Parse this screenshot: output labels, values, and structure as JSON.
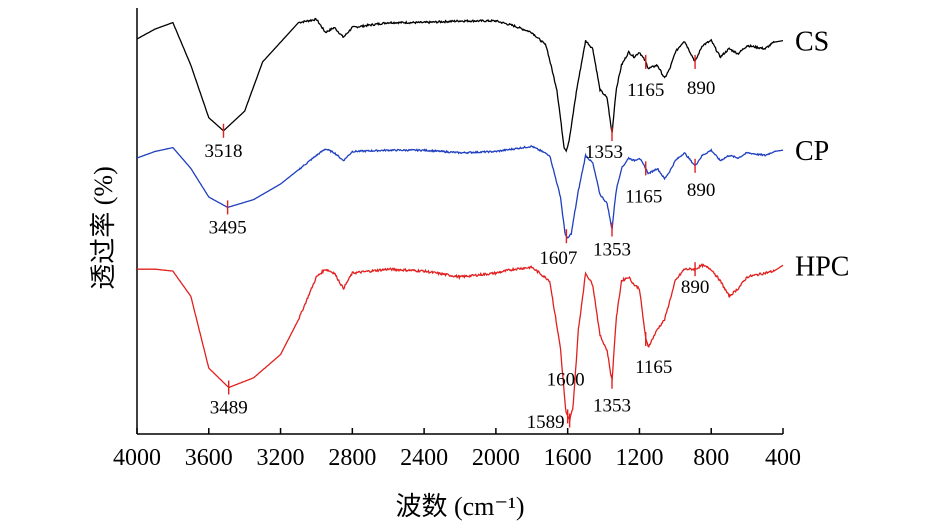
{
  "chart_data": {
    "type": "line",
    "xlabel": "波数 (cm⁻¹)",
    "ylabel": "透过率 (%)",
    "xlim": [
      4000,
      400
    ],
    "x_reversed": true,
    "x_ticks": [
      "4000",
      "3600",
      "3200",
      "2800",
      "2400",
      "2000",
      "1600",
      "1200",
      "800",
      "400"
    ],
    "x_tick_values": [
      4000,
      3600,
      3200,
      2800,
      2400,
      2000,
      1600,
      1200,
      800,
      400
    ],
    "y_ticks_shown": false,
    "grid": false,
    "legend": "labels at right end of each curve",
    "series": [
      {
        "name": "CS",
        "color": "#000000",
        "peaks": [
          {
            "x": 3518,
            "label": "3518"
          },
          {
            "x": 1353,
            "label": "1353"
          },
          {
            "x": 1165,
            "label": "1165"
          },
          {
            "x": 890,
            "label": "890"
          }
        ],
        "points": [
          [
            4000,
            0.86
          ],
          [
            3900,
            0.92
          ],
          [
            3800,
            0.96
          ],
          [
            3700,
            0.7
          ],
          [
            3600,
            0.38
          ],
          [
            3518,
            0.3
          ],
          [
            3400,
            0.42
          ],
          [
            3300,
            0.72
          ],
          [
            3100,
            0.96
          ],
          [
            3000,
            0.98
          ],
          [
            2950,
            0.9
          ],
          [
            2900,
            0.93
          ],
          [
            2850,
            0.87
          ],
          [
            2800,
            0.93
          ],
          [
            2600,
            0.96
          ],
          [
            2400,
            0.96
          ],
          [
            2200,
            0.97
          ],
          [
            2000,
            0.97
          ],
          [
            1900,
            0.94
          ],
          [
            1800,
            0.9
          ],
          [
            1720,
            0.82
          ],
          [
            1660,
            0.55
          ],
          [
            1620,
            0.2
          ],
          [
            1607,
            0.18
          ],
          [
            1590,
            0.25
          ],
          [
            1550,
            0.55
          ],
          [
            1500,
            0.85
          ],
          [
            1460,
            0.8
          ],
          [
            1420,
            0.55
          ],
          [
            1380,
            0.5
          ],
          [
            1353,
            0.28
          ],
          [
            1330,
            0.55
          ],
          [
            1300,
            0.7
          ],
          [
            1260,
            0.78
          ],
          [
            1230,
            0.75
          ],
          [
            1200,
            0.78
          ],
          [
            1165,
            0.72
          ],
          [
            1150,
            0.68
          ],
          [
            1100,
            0.7
          ],
          [
            1060,
            0.62
          ],
          [
            1030,
            0.68
          ],
          [
            1000,
            0.78
          ],
          [
            950,
            0.85
          ],
          [
            890,
            0.72
          ],
          [
            850,
            0.82
          ],
          [
            800,
            0.85
          ],
          [
            750,
            0.75
          ],
          [
            700,
            0.8
          ],
          [
            650,
            0.77
          ],
          [
            600,
            0.82
          ],
          [
            500,
            0.8
          ],
          [
            450,
            0.84
          ],
          [
            400,
            0.85
          ]
        ]
      },
      {
        "name": "CP",
        "color": "#1f3fbf",
        "peaks": [
          {
            "x": 3495,
            "label": "3495"
          },
          {
            "x": 1607,
            "label": "1607"
          },
          {
            "x": 1353,
            "label": "1353"
          },
          {
            "x": 1165,
            "label": "1165"
          },
          {
            "x": 890,
            "label": "890"
          }
        ],
        "points": [
          [
            4000,
            0.8
          ],
          [
            3900,
            0.85
          ],
          [
            3800,
            0.88
          ],
          [
            3700,
            0.72
          ],
          [
            3600,
            0.5
          ],
          [
            3495,
            0.42
          ],
          [
            3350,
            0.48
          ],
          [
            3200,
            0.6
          ],
          [
            3000,
            0.82
          ],
          [
            2950,
            0.87
          ],
          [
            2900,
            0.84
          ],
          [
            2850,
            0.78
          ],
          [
            2800,
            0.85
          ],
          [
            2600,
            0.86
          ],
          [
            2400,
            0.86
          ],
          [
            2200,
            0.84
          ],
          [
            2000,
            0.85
          ],
          [
            1900,
            0.87
          ],
          [
            1800,
            0.89
          ],
          [
            1700,
            0.82
          ],
          [
            1640,
            0.5
          ],
          [
            1615,
            0.22
          ],
          [
            1600,
            0.18
          ],
          [
            1580,
            0.22
          ],
          [
            1540,
            0.55
          ],
          [
            1500,
            0.82
          ],
          [
            1460,
            0.76
          ],
          [
            1420,
            0.52
          ],
          [
            1380,
            0.45
          ],
          [
            1353,
            0.25
          ],
          [
            1330,
            0.55
          ],
          [
            1300,
            0.72
          ],
          [
            1260,
            0.8
          ],
          [
            1230,
            0.78
          ],
          [
            1200,
            0.8
          ],
          [
            1165,
            0.72
          ],
          [
            1150,
            0.68
          ],
          [
            1100,
            0.72
          ],
          [
            1060,
            0.64
          ],
          [
            1030,
            0.7
          ],
          [
            1000,
            0.78
          ],
          [
            950,
            0.84
          ],
          [
            890,
            0.74
          ],
          [
            850,
            0.82
          ],
          [
            800,
            0.86
          ],
          [
            750,
            0.78
          ],
          [
            700,
            0.82
          ],
          [
            650,
            0.8
          ],
          [
            600,
            0.84
          ],
          [
            500,
            0.82
          ],
          [
            450,
            0.85
          ],
          [
            400,
            0.86
          ]
        ]
      },
      {
        "name": "HPC",
        "color": "#e0201f",
        "peaks": [
          {
            "x": 3489,
            "label": "3489"
          },
          {
            "x": 1589,
            "label": "1589"
          },
          {
            "x": 1600,
            "label": "1600"
          },
          {
            "x": 1353,
            "label": "1353"
          },
          {
            "x": 1165,
            "label": "1165"
          },
          {
            "x": 890,
            "label": "890"
          }
        ],
        "points": [
          [
            4000,
            0.86
          ],
          [
            3900,
            0.86
          ],
          [
            3800,
            0.85
          ],
          [
            3700,
            0.72
          ],
          [
            3600,
            0.35
          ],
          [
            3489,
            0.25
          ],
          [
            3350,
            0.3
          ],
          [
            3200,
            0.42
          ],
          [
            3100,
            0.6
          ],
          [
            3000,
            0.82
          ],
          [
            2950,
            0.86
          ],
          [
            2900,
            0.84
          ],
          [
            2850,
            0.76
          ],
          [
            2800,
            0.84
          ],
          [
            2600,
            0.86
          ],
          [
            2400,
            0.85
          ],
          [
            2200,
            0.82
          ],
          [
            2000,
            0.84
          ],
          [
            1900,
            0.86
          ],
          [
            1800,
            0.87
          ],
          [
            1700,
            0.8
          ],
          [
            1640,
            0.45
          ],
          [
            1610,
            0.12
          ],
          [
            1589,
            0.08
          ],
          [
            1570,
            0.15
          ],
          [
            1540,
            0.55
          ],
          [
            1500,
            0.84
          ],
          [
            1460,
            0.78
          ],
          [
            1420,
            0.52
          ],
          [
            1380,
            0.44
          ],
          [
            1353,
            0.28
          ],
          [
            1330,
            0.6
          ],
          [
            1300,
            0.8
          ],
          [
            1260,
            0.82
          ],
          [
            1230,
            0.78
          ],
          [
            1200,
            0.76
          ],
          [
            1165,
            0.5
          ],
          [
            1150,
            0.46
          ],
          [
            1100,
            0.55
          ],
          [
            1060,
            0.6
          ],
          [
            1030,
            0.7
          ],
          [
            1000,
            0.8
          ],
          [
            950,
            0.86
          ],
          [
            890,
            0.86
          ],
          [
            850,
            0.88
          ],
          [
            800,
            0.86
          ],
          [
            750,
            0.8
          ],
          [
            700,
            0.72
          ],
          [
            650,
            0.76
          ],
          [
            600,
            0.82
          ],
          [
            500,
            0.84
          ],
          [
            450,
            0.85
          ],
          [
            400,
            0.88
          ]
        ]
      }
    ]
  }
}
